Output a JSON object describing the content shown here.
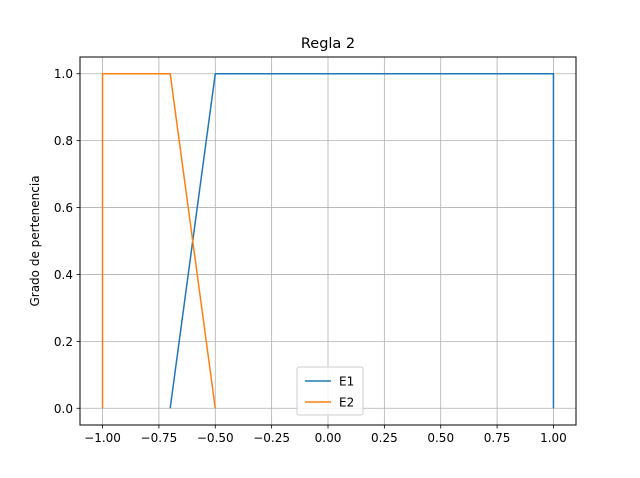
{
  "chart_data": {
    "type": "line",
    "title": "Regla 2",
    "xlabel": "",
    "ylabel": "Grado de pertenencia",
    "xlim": [
      -1.1,
      1.1
    ],
    "ylim": [
      -0.05,
      1.05
    ],
    "xticks": [
      -1.0,
      -0.75,
      -0.5,
      -0.25,
      0.0,
      0.25,
      0.5,
      0.75,
      1.0
    ],
    "xtick_labels": [
      "−1.00",
      "−0.75",
      "−0.50",
      "−0.25",
      "0.00",
      "0.25",
      "0.50",
      "0.75",
      "1.00"
    ],
    "yticks": [
      0.0,
      0.2,
      0.4,
      0.6,
      0.8,
      1.0
    ],
    "ytick_labels": [
      "0.0",
      "0.2",
      "0.4",
      "0.6",
      "0.8",
      "1.0"
    ],
    "grid": true,
    "legend_position": "lower-center",
    "series": [
      {
        "name": "E1",
        "color": "#1f77b4",
        "x": [
          -0.7,
          -0.5,
          1.0,
          1.0
        ],
        "y": [
          0.0,
          1.0,
          1.0,
          0.0
        ]
      },
      {
        "name": "E2",
        "color": "#ff7f0e",
        "x": [
          -1.0,
          -1.0,
          -0.7,
          -0.5
        ],
        "y": [
          0.0,
          1.0,
          1.0,
          0.0
        ]
      }
    ]
  }
}
